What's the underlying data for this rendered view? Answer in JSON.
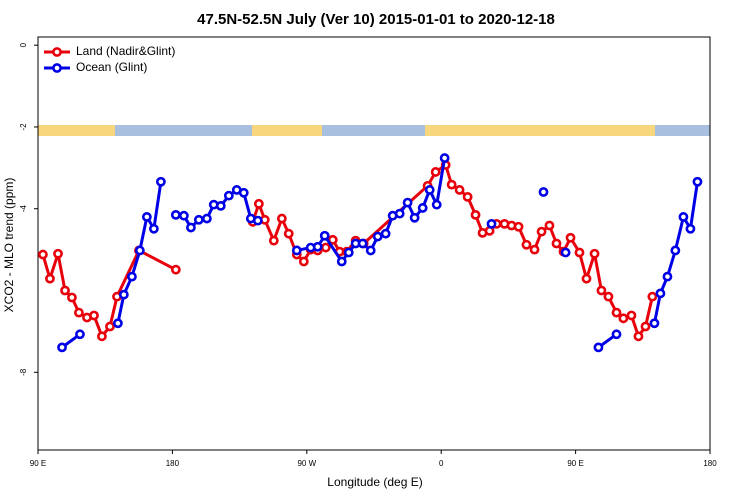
{
  "chart_data": {
    "type": "line",
    "title": "47.5N-52.5N July (Ver 10)   2015-01-01 to 2020-12-18",
    "x_label": "Longitude (deg E)",
    "y_label": "XCO2 - MLO trend (ppm)",
    "xlim": [
      90,
      540
    ],
    "ylim": [
      -9.9,
      0.2
    ],
    "xticks": [
      {
        "value": 90,
        "label": "90 E"
      },
      {
        "value": 180,
        "label": "180"
      },
      {
        "value": 270,
        "label": "90 W"
      },
      {
        "value": 360,
        "label": "0"
      },
      {
        "value": 450,
        "label": "90 E"
      },
      {
        "value": 540,
        "label": "180"
      }
    ],
    "yticks": [
      0,
      -2,
      -4,
      -8
    ],
    "legend": "top-left",
    "series": [
      {
        "name": "Land (Nadir&Glint)",
        "color": "#e8000b",
        "x": [
          93.3,
          98.0,
          103.4,
          108.1,
          112.7,
          117.4,
          122.8,
          127.5,
          132.8,
          138.2,
          142.9,
          157.6,
          182.3,
          null,
          233.8,
          237.9,
          241.9,
          247.9,
          253.3,
          257.9,
          263.3,
          268.0,
          272.6,
          277.3,
          282.7,
          287.4,
          292.0,
          296.7,
          302.7,
          308.1,
          350.9,
          356.3,
          363.0,
          367.0,
          372.3,
          377.7,
          383.0,
          387.7,
          392.4,
          397.1,
          402.4,
          407.1,
          411.8,
          417.1,
          422.5,
          427.2,
          432.5,
          437.2,
          441.9,
          446.6,
          452.6,
          457.3,
          462.7,
          467.3,
          472.0,
          477.4,
          482.0,
          487.4,
          492.1,
          496.8,
          501.4
        ],
        "values": [
          -5.12,
          -5.71,
          -5.1,
          -6.0,
          -6.17,
          -6.54,
          -6.66,
          -6.61,
          -7.12,
          -6.88,
          -6.15,
          -5.02,
          -5.49,
          null,
          -4.32,
          -3.88,
          -4.27,
          -4.78,
          -4.24,
          -4.61,
          -5.12,
          -5.29,
          -5.0,
          -5.02,
          -4.95,
          -4.76,
          -5.05,
          -5.05,
          -4.78,
          -4.85,
          -3.44,
          -3.1,
          -2.93,
          -3.41,
          -3.54,
          -3.71,
          -4.15,
          -4.59,
          -4.54,
          -4.37,
          -4.37,
          -4.41,
          -4.44,
          -4.88,
          -5.0,
          -4.56,
          -4.41,
          -4.85,
          -5.05,
          -4.71,
          -5.07,
          -5.71,
          -5.1,
          -6.0,
          -6.15,
          -6.54,
          -6.68,
          -6.61,
          -7.12,
          -6.88,
          -6.15
        ]
      },
      {
        "name": "Ocean (Glint)",
        "color": "#0000e6",
        "x": [
          106.1,
          118.1,
          null,
          143.5,
          147.5,
          152.9,
          158.2,
          162.9,
          167.6,
          172.3,
          null,
          182.3,
          187.7,
          192.4,
          197.7,
          203.1,
          207.7,
          212.4,
          217.8,
          223.1,
          227.8,
          232.5,
          237.2,
          null,
          263.3,
          272.6,
          277.3,
          282.0,
          293.4,
          298.1,
          302.7,
          307.4,
          312.8,
          317.5,
          322.8,
          327.5,
          332.2,
          337.5,
          342.2,
          347.6,
          352.3,
          357.0,
          362.3,
          null,
          393.7,
          null,
          428.5,
          null,
          443.3,
          null,
          465.3,
          477.4,
          null,
          502.8,
          506.8,
          511.5,
          516.8,
          522.2,
          526.9,
          531.6
        ],
        "values": [
          -7.39,
          -7.07,
          null,
          -6.8,
          -6.1,
          -5.66,
          -5.02,
          -4.2,
          -4.49,
          -3.34,
          null,
          -4.15,
          -4.17,
          -4.46,
          -4.27,
          -4.24,
          -3.9,
          -3.93,
          -3.68,
          -3.54,
          -3.61,
          -4.24,
          -4.29,
          null,
          -5.02,
          -4.95,
          -4.93,
          -4.66,
          -5.29,
          -5.07,
          -4.85,
          -4.85,
          -5.02,
          -4.68,
          -4.61,
          -4.17,
          -4.12,
          -3.85,
          -4.22,
          -3.98,
          -3.54,
          -3.9,
          -2.76,
          null,
          -4.37,
          null,
          -3.59,
          null,
          -5.07,
          null,
          -7.39,
          -7.07,
          null,
          -6.8,
          -6.07,
          -5.66,
          -5.02,
          -4.2,
          -4.49,
          -3.34
        ]
      }
    ]
  }
}
